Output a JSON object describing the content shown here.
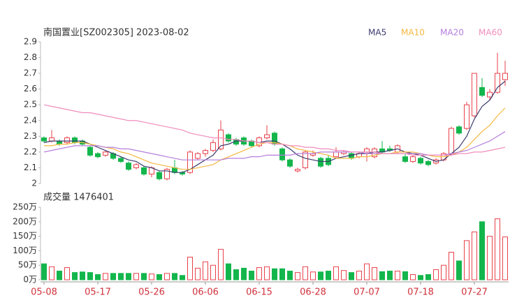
{
  "chart_data": [
    {
      "type": "candlestick",
      "title": "南国置业[SZ002305] 2023-08-02",
      "up_color": "#e8414a",
      "down_color": "#13b64c",
      "open": [
        2.29,
        2.27,
        2.27,
        2.26,
        2.29,
        2.27,
        2.23,
        2.19,
        2.18,
        2.19,
        2.16,
        2.13,
        2.1,
        2.1,
        2.06,
        2.07,
        2.03,
        2.1,
        2.07,
        2.07,
        2.16,
        2.19,
        2.21,
        2.22,
        2.31,
        2.28,
        2.29,
        2.27,
        2.24,
        2.29,
        2.32,
        2.22,
        2.15,
        2.08,
        2.1,
        2.18,
        2.16,
        2.16,
        2.17,
        2.19,
        2.19,
        2.17,
        2.2,
        2.17,
        2.22,
        2.22,
        2.2,
        2.17,
        2.14,
        2.16,
        2.14,
        2.13,
        2.15,
        2.19,
        2.36,
        2.35,
        2.43,
        2.61,
        2.55,
        2.58,
        2.66
      ],
      "high": [
        2.3,
        2.34,
        2.28,
        2.3,
        2.3,
        2.28,
        2.24,
        2.2,
        2.21,
        2.2,
        2.17,
        2.14,
        2.13,
        2.11,
        2.11,
        2.08,
        2.1,
        2.15,
        2.08,
        2.21,
        2.2,
        2.22,
        2.28,
        2.4,
        2.32,
        2.29,
        2.3,
        2.28,
        2.3,
        2.37,
        2.33,
        2.23,
        2.16,
        2.1,
        2.21,
        2.21,
        2.17,
        2.18,
        2.23,
        2.21,
        2.2,
        2.2,
        2.23,
        2.23,
        2.27,
        2.24,
        2.25,
        2.19,
        2.18,
        2.17,
        2.15,
        2.16,
        2.2,
        2.36,
        2.37,
        2.52,
        2.7,
        2.67,
        2.6,
        2.83,
        2.78
      ],
      "low": [
        2.26,
        2.26,
        2.24,
        2.25,
        2.25,
        2.24,
        2.17,
        2.16,
        2.17,
        2.15,
        2.13,
        2.08,
        2.09,
        2.05,
        2.04,
        2.02,
        2.02,
        2.06,
        2.05,
        2.06,
        2.15,
        2.17,
        2.2,
        2.21,
        2.26,
        2.24,
        2.24,
        2.23,
        2.23,
        2.28,
        2.24,
        2.14,
        2.1,
        2.07,
        2.09,
        2.17,
        2.1,
        2.11,
        2.16,
        2.18,
        2.15,
        2.16,
        2.14,
        2.16,
        2.19,
        2.2,
        2.19,
        2.13,
        2.13,
        2.12,
        2.11,
        2.12,
        2.14,
        2.18,
        2.31,
        2.34,
        2.42,
        2.55,
        2.53,
        2.57,
        2.62
      ],
      "close": [
        2.27,
        2.29,
        2.25,
        2.29,
        2.26,
        2.25,
        2.18,
        2.17,
        2.2,
        2.16,
        2.14,
        2.09,
        2.12,
        2.06,
        2.1,
        2.03,
        2.09,
        2.07,
        2.06,
        2.2,
        2.19,
        2.21,
        2.26,
        2.34,
        2.27,
        2.25,
        2.25,
        2.24,
        2.29,
        2.31,
        2.25,
        2.15,
        2.11,
        2.09,
        2.2,
        2.19,
        2.11,
        2.12,
        2.2,
        2.2,
        2.16,
        2.19,
        2.22,
        2.22,
        2.2,
        2.21,
        2.24,
        2.14,
        2.17,
        2.13,
        2.12,
        2.15,
        2.19,
        2.35,
        2.32,
        2.5,
        2.7,
        2.56,
        2.58,
        2.7,
        2.7
      ],
      "series": [
        {
          "name": "MA5",
          "color": "#3b3b6e",
          "values": [
            2.26,
            2.27,
            2.27,
            2.27,
            2.27,
            2.27,
            2.25,
            2.23,
            2.21,
            2.19,
            2.17,
            2.15,
            2.14,
            2.11,
            2.1,
            2.08,
            2.08,
            2.07,
            2.07,
            2.09,
            2.12,
            2.15,
            2.18,
            2.24,
            2.25,
            2.27,
            2.27,
            2.27,
            2.26,
            2.27,
            2.27,
            2.25,
            2.22,
            2.18,
            2.16,
            2.15,
            2.14,
            2.14,
            2.16,
            2.17,
            2.18,
            2.19,
            2.19,
            2.2,
            2.2,
            2.21,
            2.22,
            2.2,
            2.19,
            2.18,
            2.16,
            2.14,
            2.15,
            2.19,
            2.23,
            2.3,
            2.41,
            2.49,
            2.53,
            2.61,
            2.65
          ]
        },
        {
          "name": "MA10",
          "color": "#f5b841",
          "values": [
            2.24,
            2.24,
            2.25,
            2.25,
            2.26,
            2.26,
            2.25,
            2.24,
            2.23,
            2.22,
            2.2,
            2.19,
            2.17,
            2.15,
            2.13,
            2.12,
            2.11,
            2.1,
            2.09,
            2.09,
            2.1,
            2.11,
            2.12,
            2.15,
            2.17,
            2.19,
            2.21,
            2.23,
            2.25,
            2.26,
            2.26,
            2.25,
            2.24,
            2.22,
            2.21,
            2.2,
            2.19,
            2.18,
            2.16,
            2.16,
            2.16,
            2.17,
            2.17,
            2.18,
            2.19,
            2.19,
            2.2,
            2.2,
            2.2,
            2.19,
            2.18,
            2.17,
            2.17,
            2.18,
            2.2,
            2.23,
            2.28,
            2.33,
            2.37,
            2.43,
            2.48
          ]
        },
        {
          "name": "MA20",
          "color": "#b57fdc",
          "values": [
            2.2,
            2.21,
            2.22,
            2.23,
            2.24,
            2.24,
            2.24,
            2.24,
            2.23,
            2.23,
            2.22,
            2.22,
            2.21,
            2.2,
            2.19,
            2.18,
            2.17,
            2.16,
            2.15,
            2.15,
            2.15,
            2.15,
            2.15,
            2.15,
            2.16,
            2.16,
            2.16,
            2.17,
            2.17,
            2.18,
            2.18,
            2.18,
            2.18,
            2.19,
            2.19,
            2.19,
            2.2,
            2.2,
            2.2,
            2.2,
            2.2,
            2.2,
            2.19,
            2.19,
            2.19,
            2.19,
            2.19,
            2.19,
            2.19,
            2.19,
            2.18,
            2.18,
            2.18,
            2.19,
            2.2,
            2.21,
            2.23,
            2.25,
            2.27,
            2.3,
            2.33
          ]
        },
        {
          "name": "MA60",
          "color": "#f08cbc",
          "values": [
            2.5,
            2.49,
            2.48,
            2.47,
            2.46,
            2.45,
            2.45,
            2.44,
            2.43,
            2.42,
            2.41,
            2.4,
            2.4,
            2.39,
            2.38,
            2.37,
            2.36,
            2.35,
            2.34,
            2.32,
            2.31,
            2.3,
            2.29,
            2.29,
            2.28,
            2.28,
            2.27,
            2.27,
            2.26,
            2.26,
            2.25,
            2.25,
            2.24,
            2.24,
            2.23,
            2.23,
            2.22,
            2.22,
            2.21,
            2.21,
            2.2,
            2.2,
            2.2,
            2.2,
            2.19,
            2.19,
            2.19,
            2.19,
            2.18,
            2.18,
            2.18,
            2.18,
            2.18,
            2.18,
            2.19,
            2.19,
            2.2,
            2.2,
            2.21,
            2.22,
            2.23
          ]
        }
      ],
      "ylim": [
        2,
        2.9
      ],
      "yticks": [
        2,
        2.1,
        2.2,
        2.3,
        2.4,
        2.5,
        2.6,
        2.7,
        2.8,
        2.9
      ]
    },
    {
      "type": "bar",
      "title": "成交量 1476401",
      "categories": [
        "05-08",
        null,
        null,
        null,
        null,
        null,
        null,
        "05-17",
        null,
        null,
        null,
        null,
        null,
        null,
        "05-26",
        null,
        null,
        null,
        null,
        null,
        null,
        "06-06",
        null,
        null,
        null,
        null,
        null,
        null,
        "06-15",
        null,
        null,
        null,
        null,
        null,
        null,
        "06-28",
        null,
        null,
        null,
        null,
        null,
        null,
        "07-07",
        null,
        null,
        null,
        null,
        null,
        null,
        "07-18",
        null,
        null,
        null,
        null,
        null,
        null,
        "07-27",
        null,
        null,
        null,
        null
      ],
      "values": [
        55,
        45,
        30,
        42,
        25,
        27,
        25,
        18,
        22,
        22,
        22,
        22,
        22,
        22,
        20,
        18,
        22,
        22,
        15,
        78,
        40,
        62,
        50,
        105,
        55,
        35,
        40,
        30,
        42,
        45,
        38,
        38,
        30,
        25,
        45,
        27,
        27,
        30,
        45,
        32,
        25,
        30,
        55,
        42,
        28,
        30,
        30,
        28,
        18,
        15,
        18,
        35,
        50,
        95,
        65,
        135,
        165,
        200,
        150,
        210,
        147.64
      ],
      "ylim": [
        0,
        250
      ],
      "yticks": [
        {
          "value": 0,
          "label": "0万"
        },
        {
          "value": 50,
          "label": "50万"
        },
        {
          "value": 100,
          "label": "100万"
        },
        {
          "value": 150,
          "label": "150万"
        },
        {
          "value": 200,
          "label": "200万"
        },
        {
          "value": 250,
          "label": "250万"
        }
      ]
    }
  ]
}
